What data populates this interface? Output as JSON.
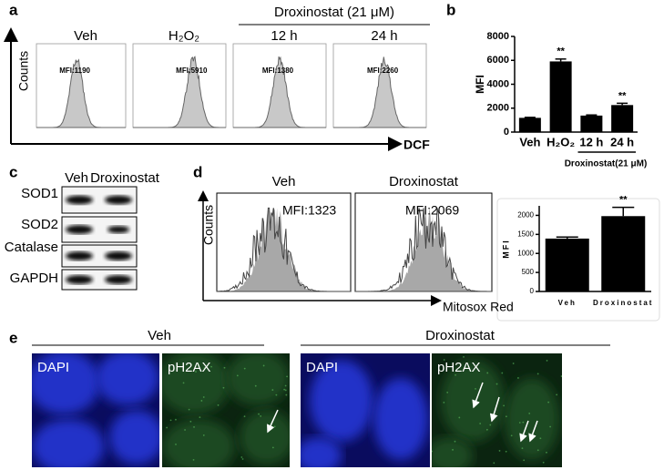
{
  "panel_labels": [
    "a",
    "b",
    "c",
    "d",
    "e"
  ],
  "panel_a": {
    "group_label": "Droxinostat (21 μM)",
    "y_label": "Counts",
    "x_label": "DCF",
    "plots": [
      {
        "title": "Veh",
        "mfi": "MFI:1190"
      },
      {
        "title": "H₂O₂",
        "mfi": "MFI:5910"
      },
      {
        "title": "12 h",
        "mfi": "MFI:1380"
      },
      {
        "title": "24 h",
        "mfi": "MFI:2260"
      }
    ]
  },
  "chart_data": [
    {
      "type": "bar",
      "y_label": "MFI",
      "categories": [
        "Veh",
        "H₂O₂",
        "12 h",
        "24 h"
      ],
      "values": [
        1190,
        5910,
        1380,
        2260
      ],
      "errors": [
        40,
        200,
        50,
        150
      ],
      "significance": [
        null,
        "**",
        null,
        "**"
      ],
      "group_label": "Droxinostat(21 μM)",
      "color": "#000000",
      "ylim": [
        0,
        8000
      ],
      "yticks": [
        0,
        2000,
        4000,
        6000,
        8000
      ]
    },
    {
      "type": "bar",
      "y_label": "MFI",
      "categories": [
        "Veh",
        "Droxinostat"
      ],
      "values": [
        1390,
        1980
      ],
      "errors": [
        40,
        230
      ],
      "significance": [
        null,
        "**"
      ],
      "color": "#000000",
      "ylim": [
        0,
        2250
      ],
      "yticks": [
        0,
        500,
        1000,
        1500,
        2000
      ]
    }
  ],
  "panel_c": {
    "columns": [
      "Veh",
      "Droxinostat"
    ],
    "rows": [
      "SOD1",
      "SOD2",
      "Catalase",
      "GAPDH"
    ]
  },
  "panel_d": {
    "y_label": "Counts",
    "x_label": "Mitosox Red",
    "plots": [
      {
        "title": "Veh",
        "mfi": "MFI:1323"
      },
      {
        "title": "Droxinostat",
        "mfi": "MFI:2069"
      }
    ]
  },
  "panel_e": {
    "groups": [
      {
        "title": "Veh",
        "images": [
          "DAPI",
          "pH2AX"
        ]
      },
      {
        "title": "Droxinostat",
        "images": [
          "DAPI",
          "pH2AX"
        ]
      }
    ]
  }
}
